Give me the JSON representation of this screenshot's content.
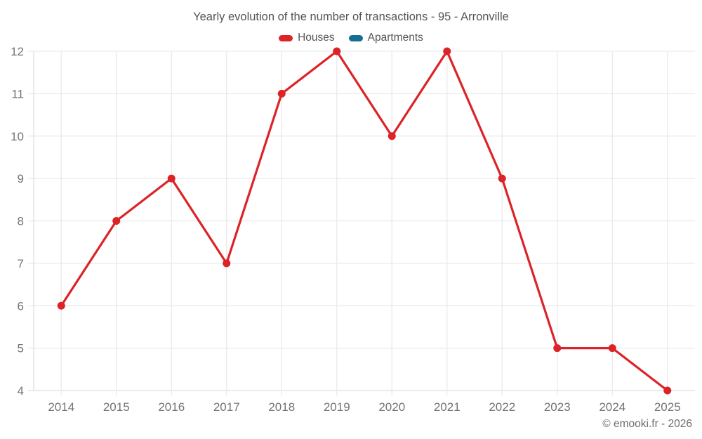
{
  "title": "Yearly evolution of the number of transactions - 95 - Arronville",
  "legend": {
    "items": [
      {
        "label": "Houses",
        "color": "#dc2327"
      },
      {
        "label": "Apartments",
        "color": "#166f8f"
      }
    ]
  },
  "footer": "© emooki.fr - 2026",
  "colors": {
    "background": "#ffffff",
    "gridline": "#eaeaea",
    "axis_line": "#dedede",
    "tick_label": "#747474",
    "title_text": "#545454",
    "legend_text": "#565656",
    "footer_text": "#6d6d6d"
  },
  "chart_data": {
    "type": "line",
    "title": "Yearly evolution of the number of transactions - 95 - Arronville",
    "categories": [
      "2014",
      "2015",
      "2016",
      "2017",
      "2018",
      "2019",
      "2020",
      "2021",
      "2022",
      "2023",
      "2024",
      "2025"
    ],
    "series": [
      {
        "name": "Houses",
        "color": "#dc2327",
        "values": [
          6,
          8,
          9,
          7,
          11,
          12,
          10,
          12,
          9,
          5,
          5,
          4
        ]
      },
      {
        "name": "Apartments",
        "color": "#166f8f",
        "values": []
      }
    ],
    "xlabel": "",
    "ylabel": "",
    "ylim": [
      4,
      12
    ],
    "y_ticks": [
      4,
      5,
      6,
      7,
      8,
      9,
      10,
      11,
      12
    ],
    "grid": true,
    "legend_position": "top",
    "marker": "circle"
  }
}
